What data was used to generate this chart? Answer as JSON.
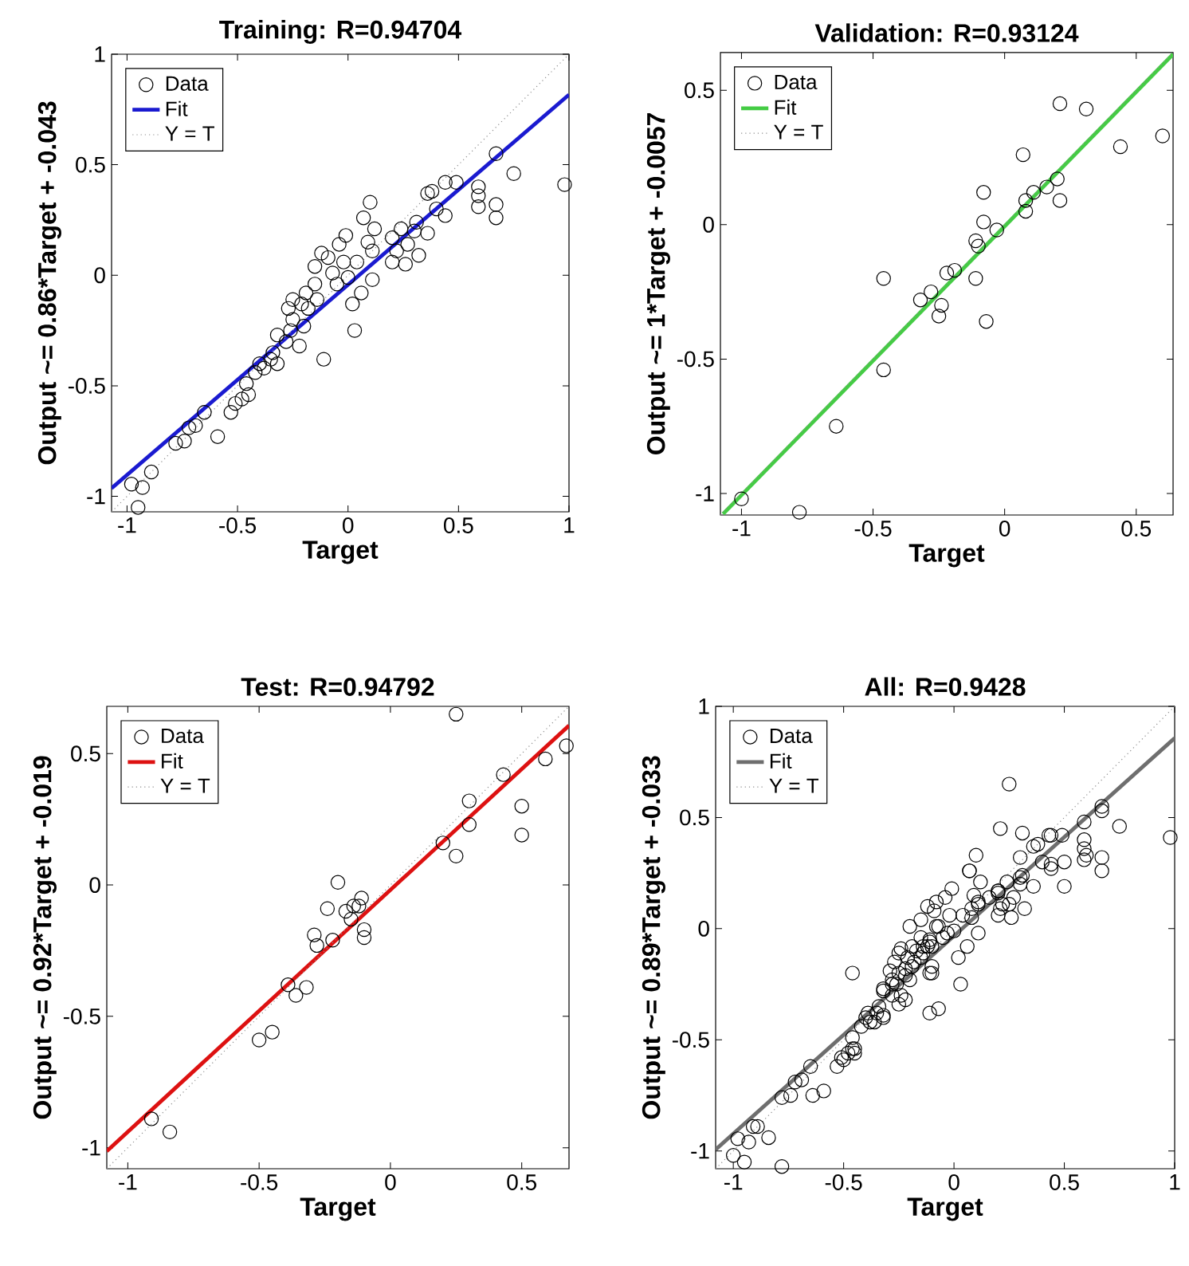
{
  "chart_data": [
    {
      "type": "scatter",
      "title": "Training: R=0.94704",
      "xlabel": "Target",
      "ylabel": "Output ~= 0.86*Target + -0.043",
      "xlim": [
        -1.07,
        1
      ],
      "ylim": [
        -1.07,
        1
      ],
      "xticks": [
        -1,
        -0.5,
        0,
        0.5,
        1
      ],
      "yticks": [
        -1,
        -0.5,
        0,
        0.5,
        1
      ],
      "legend": "top left",
      "series": [
        {
          "name": "Data",
          "marker": "circle",
          "color": "#000000",
          "x": [
            -0.98,
            -0.95,
            -0.93,
            -0.89,
            -0.78,
            -0.74,
            -0.72,
            -0.69,
            -0.65,
            -0.59,
            -0.53,
            -0.51,
            -0.48,
            -0.45,
            -0.46,
            -0.42,
            -0.4,
            -0.38,
            -0.35,
            -0.32,
            -0.34,
            -0.32,
            -0.28,
            -0.26,
            -0.27,
            -0.25,
            -0.22,
            -0.2,
            -0.25,
            -0.21,
            -0.18,
            -0.19,
            -0.15,
            -0.15,
            -0.11,
            -0.14,
            -0.12,
            -0.09,
            -0.07,
            -0.04,
            -0.01,
            -0.05,
            -0.02,
            0.0,
            0.02,
            0.03,
            0.04,
            0.06,
            0.07,
            0.09,
            0.1,
            0.11,
            0.11,
            0.12,
            0.2,
            0.2,
            0.22,
            0.24,
            0.26,
            0.27,
            0.3,
            0.31,
            0.32,
            0.36,
            0.36,
            0.38,
            0.4,
            0.44,
            0.44,
            0.49,
            0.59,
            0.59,
            0.59,
            0.67,
            0.67,
            0.67,
            0.75,
            0.98
          ],
          "values": [
            -0.945,
            -1.05,
            -0.96,
            -0.89,
            -0.76,
            -0.75,
            -0.69,
            -0.68,
            -0.62,
            -0.73,
            -0.62,
            -0.58,
            -0.56,
            -0.54,
            -0.49,
            -0.44,
            -0.4,
            -0.42,
            -0.38,
            -0.4,
            -0.35,
            -0.27,
            -0.3,
            -0.25,
            -0.15,
            -0.2,
            -0.32,
            -0.23,
            -0.11,
            -0.13,
            -0.15,
            -0.08,
            -0.04,
            0.04,
            -0.38,
            -0.11,
            0.1,
            0.08,
            0.01,
            0.14,
            0.18,
            -0.04,
            0.06,
            -0.01,
            -0.13,
            -0.25,
            0.06,
            -0.08,
            0.26,
            0.15,
            0.33,
            0.11,
            -0.02,
            0.21,
            0.17,
            0.06,
            0.11,
            0.21,
            0.05,
            0.14,
            0.2,
            0.24,
            0.09,
            0.19,
            0.37,
            0.38,
            0.3,
            0.42,
            0.27,
            0.42,
            0.4,
            0.36,
            0.31,
            0.55,
            0.32,
            0.26,
            0.46,
            0.41
          ]
        },
        {
          "name": "Fit",
          "type": "line",
          "color": "#1a1ad0",
          "line_style": "solid",
          "x": [
            -1.07,
            1
          ],
          "values": [
            -0.963,
            0.817
          ]
        },
        {
          "name": "Y = T",
          "type": "line",
          "color": "#8c8c8c",
          "line_style": "dotted",
          "x": [
            -1.07,
            1
          ],
          "values": [
            -1.07,
            1
          ]
        }
      ]
    },
    {
      "type": "scatter",
      "title": "Validation: R=0.93124",
      "xlabel": "Target",
      "ylabel": "Output ~= 1*Target + -0.0057",
      "xlim": [
        -1.08,
        0.64
      ],
      "ylim": [
        -1.08,
        0.64
      ],
      "xticks": [
        -1,
        -0.5,
        0,
        0.5
      ],
      "yticks": [
        -1,
        -0.5,
        0,
        0.5
      ],
      "legend": "top left",
      "series": [
        {
          "name": "Data",
          "marker": "circle",
          "color": "#000000",
          "x": [
            -1.0,
            -0.78,
            -0.64,
            -0.46,
            -0.46,
            -0.32,
            -0.28,
            -0.25,
            -0.24,
            -0.22,
            -0.19,
            -0.11,
            -0.11,
            -0.1,
            -0.08,
            -0.08,
            -0.07,
            -0.03,
            0.07,
            0.08,
            0.08,
            0.11,
            0.16,
            0.2,
            0.21,
            0.21,
            0.31,
            0.44,
            0.6
          ],
          "values": [
            -1.02,
            -1.07,
            -0.75,
            -0.54,
            -0.2,
            -0.28,
            -0.25,
            -0.34,
            -0.3,
            -0.18,
            -0.17,
            -0.2,
            -0.06,
            -0.08,
            0.12,
            0.01,
            -0.36,
            -0.02,
            0.26,
            0.05,
            0.09,
            0.12,
            0.14,
            0.17,
            0.09,
            0.45,
            0.43,
            0.29,
            0.33
          ]
        },
        {
          "name": "Fit",
          "type": "line",
          "color": "#44cc44",
          "line_style": "solid",
          "x": [
            -1.07,
            0.64
          ],
          "values": [
            -1.076,
            0.634
          ]
        },
        {
          "name": "Y = T",
          "type": "line",
          "color": "#8c8c8c",
          "line_style": "dotted",
          "x": [
            -1.08,
            0.64
          ],
          "values": [
            -1.08,
            0.64
          ]
        }
      ]
    },
    {
      "type": "scatter",
      "title": "Test: R=0.94792",
      "xlabel": "Target",
      "ylabel": "Output ~= 0.92*Target + -0.019",
      "xlim": [
        -1.08,
        0.68
      ],
      "ylim": [
        -1.08,
        0.68
      ],
      "xticks": [
        -1,
        -0.5,
        0,
        0.5
      ],
      "yticks": [
        -1,
        -0.5,
        0,
        0.5
      ],
      "legend": "top left",
      "series": [
        {
          "name": "Data",
          "marker": "circle",
          "color": "#000000",
          "x": [
            -0.91,
            -0.84,
            -0.5,
            -0.45,
            -0.39,
            -0.36,
            -0.32,
            -0.29,
            -0.28,
            -0.24,
            -0.22,
            -0.2,
            -0.17,
            -0.15,
            -0.14,
            -0.12,
            -0.11,
            -0.1,
            -0.1,
            0.2,
            0.25,
            0.25,
            0.3,
            0.3,
            0.43,
            0.5,
            0.5,
            0.59,
            0.67
          ],
          "values": [
            -0.89,
            -0.94,
            -0.59,
            -0.56,
            -0.38,
            -0.42,
            -0.39,
            -0.19,
            -0.23,
            -0.09,
            -0.21,
            0.01,
            -0.1,
            -0.13,
            -0.08,
            -0.08,
            -0.05,
            -0.17,
            -0.2,
            0.16,
            0.11,
            0.65,
            0.32,
            0.23,
            0.42,
            0.3,
            0.19,
            0.48,
            0.53
          ]
        },
        {
          "name": "Fit",
          "type": "line",
          "color": "#dd1111",
          "line_style": "solid",
          "x": [
            -1.08,
            0.68
          ],
          "values": [
            -1.013,
            0.607
          ]
        },
        {
          "name": "Y = T",
          "type": "line",
          "color": "#8c8c8c",
          "line_style": "dotted",
          "x": [
            -1.08,
            0.68
          ],
          "values": [
            -1.08,
            0.68
          ]
        }
      ]
    },
    {
      "type": "scatter",
      "title": "All: R=0.9428",
      "xlabel": "Target",
      "ylabel": "Output ~= 0.89*Target + -0.033",
      "xlim": [
        -1.08,
        1
      ],
      "ylim": [
        -1.08,
        1
      ],
      "xticks": [
        -1,
        -0.5,
        0,
        0.5,
        1
      ],
      "yticks": [
        -1,
        -0.5,
        0,
        0.5,
        1
      ],
      "legend": "top left",
      "series": [
        {
          "name": "Data",
          "marker": "circle",
          "color": "#000000",
          "x": [
            -0.98,
            -0.95,
            -0.93,
            -0.89,
            -0.78,
            -0.74,
            -0.72,
            -0.69,
            -0.65,
            -0.59,
            -0.53,
            -0.51,
            -0.48,
            -0.45,
            -0.46,
            -0.42,
            -0.4,
            -0.38,
            -0.35,
            -0.32,
            -0.34,
            -0.32,
            -0.28,
            -0.26,
            -0.27,
            -0.25,
            -0.22,
            -0.2,
            -0.25,
            -0.21,
            -0.18,
            -0.19,
            -0.15,
            -0.15,
            -0.11,
            -0.14,
            -0.12,
            -0.09,
            -0.07,
            -0.04,
            -0.01,
            -0.05,
            -0.02,
            0.0,
            0.02,
            0.03,
            0.04,
            0.06,
            0.07,
            0.09,
            0.1,
            0.11,
            0.11,
            0.12,
            0.2,
            0.2,
            0.22,
            0.24,
            0.26,
            0.27,
            0.3,
            0.31,
            0.32,
            0.36,
            0.36,
            0.38,
            0.4,
            0.44,
            0.44,
            0.49,
            0.59,
            0.59,
            0.59,
            0.67,
            0.67,
            0.67,
            0.75,
            0.98,
            -1.0,
            -0.78,
            -0.64,
            -0.46,
            -0.46,
            -0.32,
            -0.28,
            -0.25,
            -0.24,
            -0.22,
            -0.19,
            -0.11,
            -0.11,
            -0.1,
            -0.08,
            -0.08,
            -0.07,
            -0.03,
            0.07,
            0.08,
            0.08,
            0.11,
            0.16,
            0.2,
            0.21,
            0.21,
            0.31,
            0.44,
            0.6,
            -0.91,
            -0.84,
            -0.5,
            -0.45,
            -0.39,
            -0.36,
            -0.32,
            -0.29,
            -0.28,
            -0.24,
            -0.22,
            -0.2,
            -0.17,
            -0.15,
            -0.14,
            -0.12,
            -0.11,
            -0.1,
            -0.1,
            0.2,
            0.25,
            0.25,
            0.3,
            0.3,
            0.43,
            0.5,
            0.5,
            0.59,
            0.67
          ],
          "values": [
            -0.945,
            -1.05,
            -0.96,
            -0.89,
            -0.76,
            -0.75,
            -0.69,
            -0.68,
            -0.62,
            -0.73,
            -0.62,
            -0.58,
            -0.56,
            -0.54,
            -0.49,
            -0.44,
            -0.4,
            -0.42,
            -0.38,
            -0.4,
            -0.35,
            -0.27,
            -0.3,
            -0.25,
            -0.15,
            -0.2,
            -0.32,
            -0.23,
            -0.11,
            -0.13,
            -0.15,
            -0.08,
            -0.04,
            0.04,
            -0.38,
            -0.11,
            0.1,
            0.08,
            0.01,
            0.14,
            0.18,
            -0.04,
            0.06,
            -0.01,
            -0.13,
            -0.25,
            0.06,
            -0.08,
            0.26,
            0.15,
            0.33,
            0.11,
            -0.02,
            0.21,
            0.17,
            0.06,
            0.11,
            0.21,
            0.05,
            0.14,
            0.2,
            0.24,
            0.09,
            0.19,
            0.37,
            0.38,
            0.3,
            0.42,
            0.27,
            0.42,
            0.4,
            0.36,
            0.31,
            0.55,
            0.32,
            0.26,
            0.46,
            0.41,
            -1.02,
            -1.07,
            -0.75,
            -0.54,
            -0.2,
            -0.28,
            -0.25,
            -0.34,
            -0.3,
            -0.18,
            -0.17,
            -0.2,
            -0.06,
            -0.08,
            0.12,
            0.01,
            -0.36,
            -0.02,
            0.26,
            0.05,
            0.09,
            0.12,
            0.14,
            0.17,
            0.09,
            0.45,
            0.43,
            0.29,
            0.33,
            -0.89,
            -0.94,
            -0.59,
            -0.56,
            -0.38,
            -0.42,
            -0.39,
            -0.19,
            -0.23,
            -0.09,
            -0.21,
            0.01,
            -0.1,
            -0.13,
            -0.08,
            -0.08,
            -0.05,
            -0.17,
            -0.2,
            0.16,
            0.11,
            0.65,
            0.32,
            0.23,
            0.42,
            0.3,
            0.19,
            0.48,
            0.53
          ]
        },
        {
          "name": "Fit",
          "type": "line",
          "color": "#6e6e6e",
          "line_style": "solid",
          "x": [
            -1.08,
            1
          ],
          "values": [
            -0.994,
            0.857
          ]
        },
        {
          "name": "Y = T",
          "type": "line",
          "color": "#8c8c8c",
          "line_style": "dotted",
          "x": [
            -1.08,
            1
          ],
          "values": [
            -1.08,
            1
          ]
        }
      ]
    }
  ]
}
